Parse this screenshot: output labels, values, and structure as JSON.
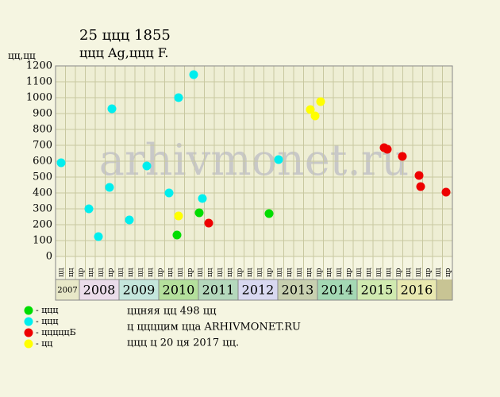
{
  "chart_data": {
    "type": "scatter",
    "title": "25 ццц 1855",
    "subtitle": "ццц Ag,ццц F.",
    "y_label": "цц,цц",
    "watermark": "arhivmonet.ru",
    "xlim": [
      2007.4,
      2017.4
    ],
    "ylim": [
      0,
      1200
    ],
    "yticks": [
      0,
      100,
      200,
      300,
      400,
      500,
      600,
      700,
      800,
      900,
      1000,
      1100,
      1200
    ],
    "grid": true,
    "column_labels": [
      "цц",
      "цц",
      "цр",
      "цц",
      "цц",
      "цр",
      "цц",
      "цц",
      "цц",
      "цц",
      "цр",
      "цц",
      "цц",
      "цр",
      "цц",
      "цц",
      "цц",
      "цц",
      "цр",
      "цц",
      "цц",
      "цр",
      "цц",
      "цц",
      "цц",
      "цц",
      "цр",
      "цц",
      "цц",
      "цр",
      "цц",
      "цц",
      "цц",
      "цц",
      "цр",
      "цц",
      "цц",
      "цр",
      "цц",
      "цр"
    ],
    "years": [
      {
        "label": "2007",
        "color": "#e8e8c8"
      },
      {
        "label": "2008",
        "color": "#eadcea"
      },
      {
        "label": "2009",
        "color": "#c4e6dc"
      },
      {
        "label": "2010",
        "color": "#b4e09c"
      },
      {
        "label": "2011",
        "color": "#b4d8bc"
      },
      {
        "label": "2012",
        "color": "#d8d8f0"
      },
      {
        "label": "2013",
        "color": "#c8d0b0"
      },
      {
        "label": "2014",
        "color": "#a4d8b4"
      },
      {
        "label": "2015",
        "color": "#d0eab0"
      },
      {
        "label": "2016",
        "color": "#e8e8b0"
      }
    ],
    "series": [
      {
        "name": "- ццц",
        "color": "#00dd00",
        "x": [
          2010.46,
          2011.02,
          2012.78
        ],
        "values": [
          135,
          275,
          270
        ]
      },
      {
        "name": "- ццц",
        "color": "#00eeee",
        "x": [
          2007.54,
          2008.24,
          2008.48,
          2008.76,
          2008.82,
          2009.26,
          2009.7,
          2010.26,
          2010.5,
          2010.88,
          2011.1,
          2013.02
        ],
        "values": [
          590,
          300,
          125,
          435,
          930,
          230,
          570,
          400,
          1000,
          1145,
          365,
          610
        ]
      },
      {
        "name": "- цццццБ",
        "color": "#ee0000",
        "x": [
          2011.26,
          2015.68,
          2015.76,
          2016.14,
          2016.56,
          2016.6,
          2017.24
        ],
        "values": [
          210,
          685,
          675,
          630,
          510,
          440,
          405
        ]
      },
      {
        "name": "- цц",
        "color": "#ffff00",
        "x": [
          2010.5,
          2013.82,
          2013.94,
          2014.08
        ],
        "values": [
          255,
          925,
          885,
          975
        ]
      }
    ],
    "footer": [
      "ццняя цц 498 цц",
      "ц ццццим цца ARHIVMONET.RU",
      "ццц ц 20 ця 2017 цц."
    ]
  }
}
